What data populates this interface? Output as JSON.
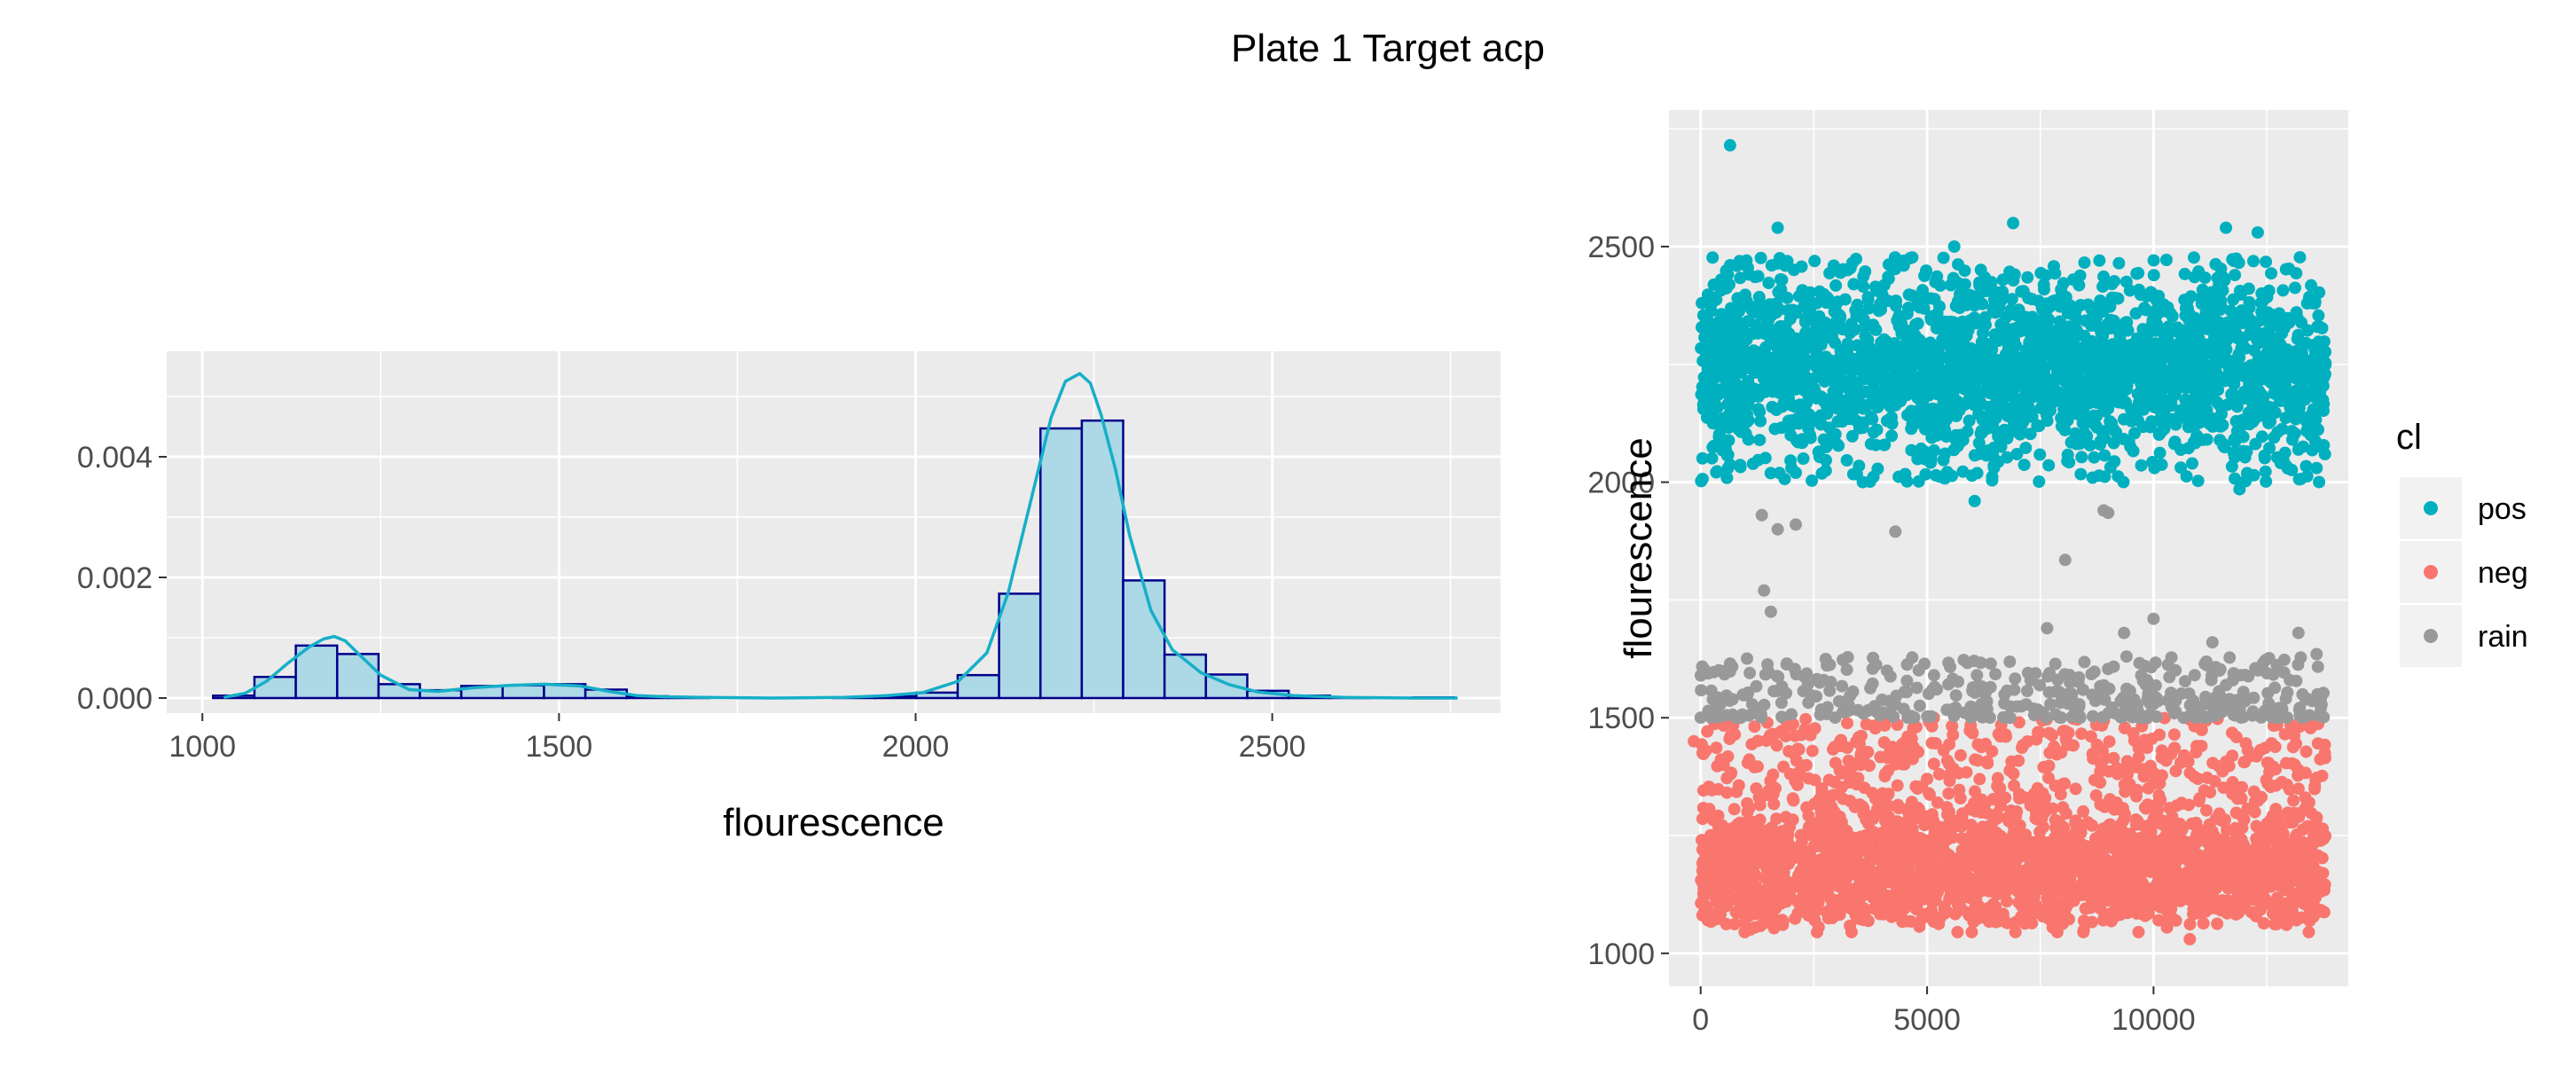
{
  "figure_title": "Plate 1 Target acp",
  "chart_data": [
    {
      "type": "histogram",
      "title": "",
      "xlabel": "flourescence",
      "ylabel": "",
      "xlim": [
        950,
        2820
      ],
      "ylim": [
        -0.00025,
        0.00575
      ],
      "x_ticks": [
        1000,
        1500,
        2000,
        2500
      ],
      "x_tick_labels": [
        "1000",
        "1500",
        "2000",
        "2500"
      ],
      "y_ticks": [
        0,
        0.002,
        0.004
      ],
      "y_tick_labels": [
        "0.000",
        "0.002",
        "0.004"
      ],
      "grid": true,
      "bin_width": 58,
      "bins": [
        {
          "x0": 1015,
          "x1": 1073,
          "density": 4e-05
        },
        {
          "x0": 1073,
          "x1": 1131,
          "density": 0.00035
        },
        {
          "x0": 1131,
          "x1": 1189,
          "density": 0.00087
        },
        {
          "x0": 1189,
          "x1": 1247,
          "density": 0.00073
        },
        {
          "x0": 1247,
          "x1": 1305,
          "density": 0.00023
        },
        {
          "x0": 1305,
          "x1": 1363,
          "density": 0.00013
        },
        {
          "x0": 1363,
          "x1": 1421,
          "density": 0.0002
        },
        {
          "x0": 1421,
          "x1": 1479,
          "density": 0.00021
        },
        {
          "x0": 1479,
          "x1": 1537,
          "density": 0.00023
        },
        {
          "x0": 1537,
          "x1": 1595,
          "density": 0.00014
        },
        {
          "x0": 1595,
          "x1": 1653,
          "density": 3e-05
        },
        {
          "x0": 1653,
          "x1": 1711,
          "density": 1e-05
        },
        {
          "x0": 1711,
          "x1": 1769,
          "density": 0
        },
        {
          "x0": 1769,
          "x1": 1827,
          "density": 0
        },
        {
          "x0": 1827,
          "x1": 1885,
          "density": 0
        },
        {
          "x0": 1885,
          "x1": 1943,
          "density": 1e-05
        },
        {
          "x0": 1943,
          "x1": 2001,
          "density": 3e-05
        },
        {
          "x0": 2001,
          "x1": 2059,
          "density": 9e-05
        },
        {
          "x0": 2059,
          "x1": 2117,
          "density": 0.00038
        },
        {
          "x0": 2117,
          "x1": 2175,
          "density": 0.00173
        },
        {
          "x0": 2175,
          "x1": 2233,
          "density": 0.00447
        },
        {
          "x0": 2233,
          "x1": 2291,
          "density": 0.0046
        },
        {
          "x0": 2291,
          "x1": 2349,
          "density": 0.00195
        },
        {
          "x0": 2349,
          "x1": 2407,
          "density": 0.00072
        },
        {
          "x0": 2407,
          "x1": 2465,
          "density": 0.00039
        },
        {
          "x0": 2465,
          "x1": 2523,
          "density": 0.00012
        },
        {
          "x0": 2523,
          "x1": 2581,
          "density": 4e-05
        },
        {
          "x0": 2581,
          "x1": 2639,
          "density": 1e-05
        },
        {
          "x0": 2639,
          "x1": 2697,
          "density": 0
        },
        {
          "x0": 2697,
          "x1": 2755,
          "density": 1e-05
        }
      ],
      "density_curve": {
        "x": [
          1030,
          1060,
          1090,
          1120,
          1150,
          1170,
          1185,
          1200,
          1220,
          1250,
          1290,
          1330,
          1380,
          1430,
          1480,
          1530,
          1570,
          1610,
          1650,
          1700,
          1800,
          1900,
          1960,
          2010,
          2060,
          2100,
          2130,
          2160,
          2190,
          2210,
          2230,
          2245,
          2260,
          2280,
          2300,
          2330,
          2360,
          2400,
          2440,
          2480,
          2530,
          2600,
          2700,
          2760
        ],
        "y": [
          1e-05,
          8e-05,
          0.00028,
          0.00058,
          0.00085,
          0.00098,
          0.00102,
          0.00095,
          0.00072,
          0.00038,
          0.00014,
          0.00011,
          0.00017,
          0.00021,
          0.00023,
          0.0002,
          0.00011,
          4e-05,
          2e-05,
          1e-05,
          0,
          1e-05,
          4e-05,
          9e-05,
          0.00028,
          0.00075,
          0.00175,
          0.0032,
          0.00465,
          0.00525,
          0.00538,
          0.00522,
          0.0047,
          0.0038,
          0.0027,
          0.00145,
          0.0008,
          0.00042,
          0.00022,
          0.0001,
          4e-05,
          1e-05,
          0,
          0
        ]
      },
      "colors": {
        "bar_fill": "#add8e6",
        "bar_outline": "#00008b",
        "density_line": "#16afc8",
        "panel": "#ebebeb",
        "grid": "#ffffff"
      }
    },
    {
      "type": "scatter",
      "title": "",
      "xlabel": "",
      "ylabel": "flourescence",
      "xlim": [
        -700,
        14300
      ],
      "ylim": [
        930,
        2790
      ],
      "x_ticks": [
        0,
        5000,
        10000
      ],
      "x_tick_labels": [
        "0",
        "5000",
        "10000"
      ],
      "y_ticks": [
        1000,
        1500,
        2000,
        2500
      ],
      "y_tick_labels": [
        "1000",
        "1500",
        "2000",
        "2500"
      ],
      "grid": true,
      "n_droplets": 13800,
      "legend": {
        "title": "cl",
        "placement": "right",
        "entries": [
          "pos",
          "neg",
          "rain"
        ]
      },
      "series": [
        {
          "name": "pos",
          "color": "#00b0be",
          "y_range": [
            2000,
            2480
          ],
          "center": 2250,
          "count": 2600,
          "outliers": [
            [
              650,
              2715
            ],
            [
              1700,
              2540
            ],
            [
              5600,
              2500
            ],
            [
              6900,
              2550
            ],
            [
              11600,
              2540
            ],
            [
              12300,
              2530
            ],
            [
              2100,
              2020
            ],
            [
              6050,
              1960
            ],
            [
              11900,
              1985
            ],
            [
              13600,
              2030
            ]
          ]
        },
        {
          "name": "neg",
          "color": "#f8766d",
          "y_range": [
            1060,
            1500
          ],
          "center": 1180,
          "count": 2600,
          "outliers": [
            [
              10800,
              1030
            ],
            [
              -150,
              1450
            ]
          ]
        },
        {
          "name": "rain",
          "color": "#999999",
          "y_range": [
            1500,
            1630
          ],
          "count": 420,
          "points": [
            [
              1350,
              1930
            ],
            [
              1700,
              1900
            ],
            [
              2100,
              1910
            ],
            [
              4300,
              1895
            ],
            [
              8900,
              1940
            ],
            [
              9000,
              1935
            ],
            [
              8050,
              1835
            ],
            [
              1400,
              1770
            ],
            [
              1550,
              1725
            ],
            [
              10000,
              1710
            ],
            [
              9350,
              1680
            ],
            [
              7650,
              1690
            ],
            [
              13200,
              1680
            ],
            [
              11300,
              1660
            ],
            [
              13600,
              1635
            ]
          ]
        }
      ],
      "colors": {
        "panel": "#ebebeb",
        "grid": "#ffffff"
      }
    }
  ]
}
